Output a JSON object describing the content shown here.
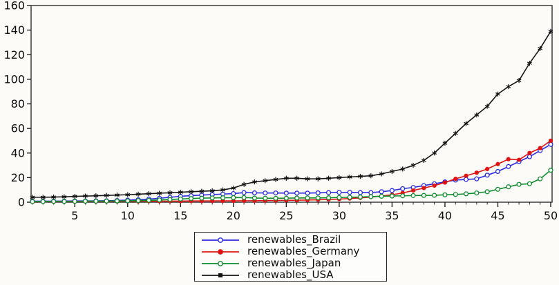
{
  "figure": {
    "background": "#fcfbf8",
    "frame_color": "#3a3a3a"
  },
  "chart_data": {
    "type": "line",
    "title": "",
    "xlabel": "",
    "ylabel": "",
    "xlim": [
      1,
      50
    ],
    "ylim": [
      0,
      160
    ],
    "grid": false,
    "legend_position": "bottom-center",
    "x_ticks_major": [
      5,
      10,
      15,
      20,
      25,
      30,
      35,
      40,
      45,
      50
    ],
    "x_ticks_minor_every": 1,
    "y_ticks": [
      0,
      20,
      40,
      60,
      80,
      100,
      120,
      140,
      160
    ],
    "x": [
      1,
      2,
      3,
      4,
      5,
      6,
      7,
      8,
      9,
      10,
      11,
      12,
      13,
      14,
      15,
      16,
      17,
      18,
      19,
      20,
      21,
      22,
      23,
      24,
      25,
      26,
      27,
      28,
      29,
      30,
      31,
      32,
      33,
      34,
      35,
      36,
      37,
      38,
      39,
      40,
      41,
      42,
      43,
      44,
      45,
      46,
      47,
      48,
      49,
      50
    ],
    "series": [
      {
        "name": "renewables_Brazil",
        "color": "#2a2ae0",
        "marker": "open-circle",
        "values": [
          0.8,
          0.8,
          0.9,
          0.9,
          1,
          1,
          1.1,
          1.2,
          1.4,
          1.7,
          2,
          2.5,
          3.2,
          4,
          4.8,
          5.3,
          5.8,
          6.2,
          6.6,
          7,
          7.8,
          7.6,
          7.5,
          7.5,
          7.4,
          7.4,
          7.4,
          7.6,
          7.8,
          8,
          8,
          7.8,
          7.8,
          8.5,
          9.5,
          11,
          12,
          13.5,
          15,
          16.5,
          18,
          18.5,
          19,
          22,
          25,
          29,
          33,
          37,
          42,
          47
        ]
      },
      {
        "name": "renewables_Germany",
        "color": "#df1412",
        "marker": "filled-circle",
        "values": [
          0.4,
          0.4,
          0.4,
          0.5,
          0.5,
          0.5,
          0.5,
          0.6,
          0.6,
          0.7,
          0.7,
          0.8,
          0.8,
          0.9,
          0.9,
          1,
          1,
          1,
          1.1,
          1.1,
          1.2,
          1.2,
          1.3,
          1.4,
          1.5,
          1.6,
          1.8,
          2,
          2.2,
          2.5,
          3,
          3.5,
          4.2,
          5,
          6,
          7.5,
          9.5,
          11.5,
          13.5,
          16,
          19,
          21.5,
          24,
          27,
          31,
          35,
          34.5,
          40,
          44,
          50
        ]
      },
      {
        "name": "renewables_Japan",
        "color": "#0d8c2c",
        "marker": "open-circle",
        "values": [
          0.5,
          0.5,
          0.6,
          0.6,
          0.7,
          0.8,
          0.8,
          0.9,
          1,
          1.1,
          1.3,
          1.5,
          1.8,
          2.2,
          2.6,
          3,
          3.3,
          3.5,
          3.6,
          3.7,
          3.8,
          3.4,
          3.2,
          3.2,
          3.3,
          3.4,
          3.5,
          3.5,
          3.6,
          3.8,
          4,
          4.2,
          4.5,
          4.8,
          5,
          5.2,
          5.4,
          5.5,
          5.6,
          6,
          6.3,
          6.8,
          7.5,
          8.5,
          10.5,
          12.5,
          14.5,
          15,
          19,
          26
        ]
      },
      {
        "name": "renewables_USA",
        "color": "#141414",
        "marker": "asterisk",
        "values": [
          4,
          4,
          4.2,
          4.4,
          4.7,
          5,
          5.2,
          5.5,
          5.8,
          6.1,
          6.5,
          6.9,
          7.3,
          7.7,
          8.1,
          8.5,
          8.9,
          9.3,
          10,
          11.5,
          14.5,
          16.5,
          17.5,
          18.5,
          19.5,
          19.5,
          19,
          19,
          19.5,
          20,
          20.5,
          21,
          21.5,
          23,
          25,
          27,
          30,
          34,
          40,
          48,
          56,
          64,
          71,
          78,
          88,
          94,
          99,
          113,
          125,
          139
        ]
      }
    ]
  },
  "legend": {
    "items": [
      {
        "label": "renewables_Brazil"
      },
      {
        "label": "renewables_Germany"
      },
      {
        "label": "renewables_Japan"
      },
      {
        "label": "renewables_USA"
      }
    ]
  }
}
